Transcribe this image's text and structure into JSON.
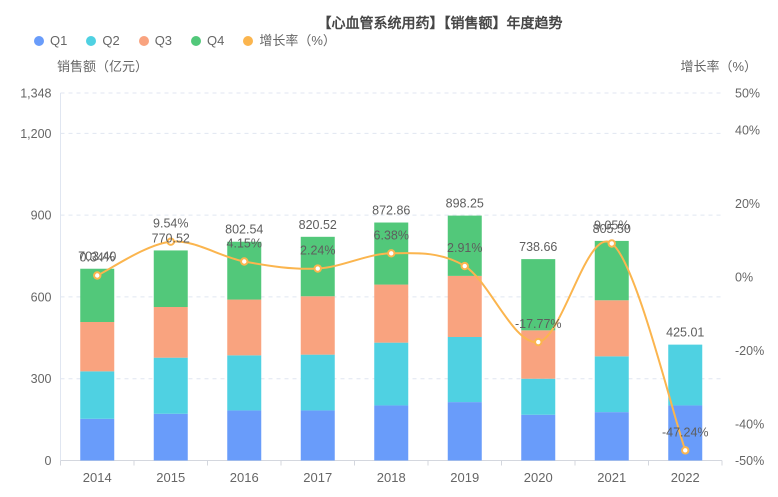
{
  "title": "【心血管系统用药】【销售额】年度趋势",
  "legend": {
    "items": [
      {
        "id": "q1",
        "label": "Q1",
        "color": "#699CFA"
      },
      {
        "id": "q2",
        "label": "Q2",
        "color": "#4FD1E2"
      },
      {
        "id": "q3",
        "label": "Q3",
        "color": "#F9A37F"
      },
      {
        "id": "q4",
        "label": "Q4",
        "color": "#52C87A"
      },
      {
        "id": "growth",
        "label": "增长率（%）",
        "color": "#FBB54E"
      }
    ]
  },
  "left_axis": {
    "name": "销售额（亿元）",
    "ticks": [
      {
        "value": 0,
        "label": "0"
      },
      {
        "value": 300,
        "label": "300"
      },
      {
        "value": 600,
        "label": "600"
      },
      {
        "value": 900,
        "label": "900"
      },
      {
        "value": 1200,
        "label": "1,200"
      },
      {
        "value": 1348,
        "label": "1,348"
      }
    ],
    "max": 1348
  },
  "right_axis": {
    "name": "增长率（%）",
    "ticks": [
      {
        "value": 50,
        "label": "50%"
      },
      {
        "value": 40,
        "label": "40%"
      },
      {
        "value": 20,
        "label": "20%"
      },
      {
        "value": 0,
        "label": "0%"
      },
      {
        "value": -20,
        "label": "-20%"
      },
      {
        "value": -40,
        "label": "-40%"
      },
      {
        "value": -50,
        "label": "-50%"
      }
    ],
    "min": -50,
    "max": 50
  },
  "chart_data": [
    {
      "type": "bar",
      "stacked": true,
      "title": "【心血管系统用药】【销售额】年度趋势",
      "categories": [
        "2014",
        "2015",
        "2016",
        "2017",
        "2018",
        "2019",
        "2020",
        "2021",
        "2022"
      ],
      "series": [
        {
          "name": "Q1",
          "color": "#699CFA",
          "values": [
            153.0,
            171.5,
            183.7,
            183.7,
            202.0,
            214.2,
            167.8,
            177.4,
            202.0
          ]
        },
        {
          "name": "Q2",
          "color": "#4FD1E2",
          "values": [
            174.0,
            205.7,
            202.0,
            204.6,
            230.3,
            238.8,
            132.2,
            204.6,
            223.0
          ]
        },
        {
          "name": "Q3",
          "color": "#F9A37F",
          "values": [
            181.0,
            185.8,
            204.6,
            214.1,
            213.0,
            224.1,
            177.4,
            205.7,
            0
          ]
        },
        {
          "name": "Q4",
          "color": "#52C87A",
          "values": [
            195.4,
            207.5,
            212.2,
            218.1,
            227.6,
            221.2,
            261.3,
            217.8,
            0
          ]
        }
      ],
      "totals": [
        703.4,
        770.52,
        802.54,
        820.52,
        872.86,
        898.25,
        738.66,
        805.5,
        425.01
      ],
      "total_labels": [
        "703.40",
        "770.52",
        "802.54",
        "820.52",
        "872.86",
        "898.25",
        "738.66",
        "805.50",
        "425.01"
      ],
      "ylabel": "销售额（亿元）",
      "ylim": [
        0,
        1348
      ],
      "grid": "dashed-horizontal"
    },
    {
      "type": "line",
      "name": "增长率（%）",
      "axis": "right",
      "smooth": true,
      "color": "#FBB54E",
      "categories": [
        "2014",
        "2015",
        "2016",
        "2017",
        "2018",
        "2019",
        "2020",
        "2021",
        "2022"
      ],
      "values": [
        0.34,
        9.54,
        4.15,
        2.24,
        6.38,
        2.91,
        -17.77,
        9.05,
        -47.24
      ],
      "point_labels": [
        "0.34%",
        "9.54%",
        "4.15%",
        "2.24%",
        "6.38%",
        "2.91%",
        "-17.77%",
        "9.05%",
        "-47.24%"
      ],
      "ylabel": "增长率（%）",
      "ylim": [
        -50,
        50
      ]
    }
  ],
  "style": {
    "label_color": "#5e5e5e",
    "axis_text_color": "#666666",
    "grid_color": "#E0E6F1",
    "axis_line_color": "#D4D7DE"
  }
}
